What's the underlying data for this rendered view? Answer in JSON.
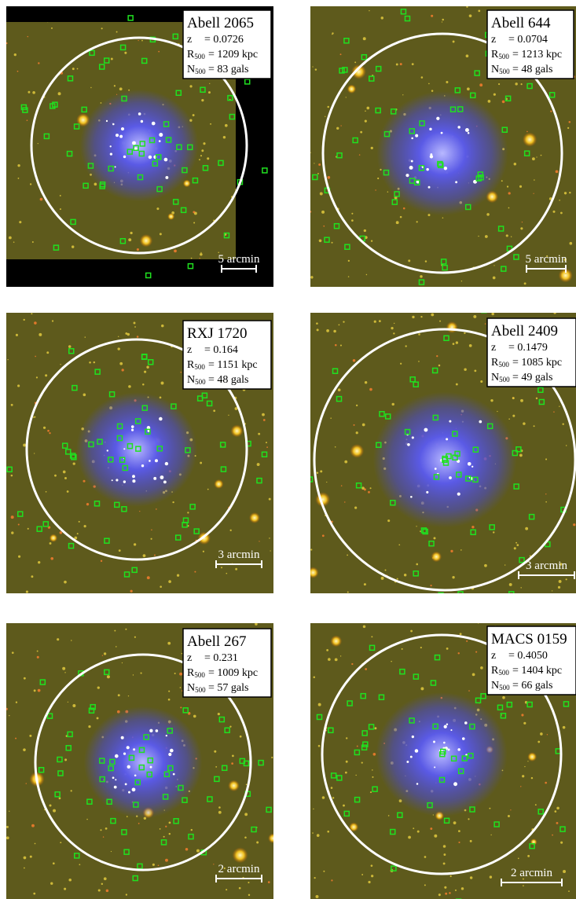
{
  "panels": [
    {
      "name": "Abell 2065",
      "z_label": "z",
      "z": "= 0.0726",
      "r_label": "R",
      "r_sub": "500",
      "r": "= 1209 kpc",
      "n_label": "N",
      "n_sub": "500",
      "n": "= 83 gals",
      "scale": "5 arcmin"
    },
    {
      "name": "Abell 644",
      "z_label": "z",
      "z": "= 0.0704",
      "r_label": "R",
      "r_sub": "500",
      "r": "= 1213 kpc",
      "n_label": "N",
      "n_sub": "500",
      "n": "= 48 gals",
      "scale": "5 arcmin"
    },
    {
      "name": "RXJ 1720",
      "z_label": "z",
      "z": "= 0.164",
      "r_label": "R",
      "r_sub": "500",
      "r": "= 1151 kpc",
      "n_label": "N",
      "n_sub": "500",
      "n": "= 48 gals",
      "scale": "3 arcmin"
    },
    {
      "name": "Abell 2409",
      "z_label": "z",
      "z": "= 0.1479",
      "r_label": "R",
      "r_sub": "500",
      "r": "= 1085 kpc",
      "n_label": "N",
      "n_sub": "500",
      "n": "= 49 gals",
      "scale": "3 arcmin"
    },
    {
      "name": "Abell 267",
      "z_label": "z",
      "z": "= 0.231",
      "r_label": "R",
      "r_sub": "500",
      "r": "= 1009 kpc",
      "n_label": "N",
      "n_sub": "500",
      "n": "= 57 gals",
      "scale": "2 arcmin"
    },
    {
      "name": "MACS 0159",
      "z_label": "z",
      "z": "= 0.4050",
      "r_label": "R",
      "r_sub": "500",
      "r": "= 1404 kpc",
      "n_label": "N",
      "n_sub": "500",
      "n": "= 66 gals",
      "scale": "2 arcmin"
    }
  ]
}
